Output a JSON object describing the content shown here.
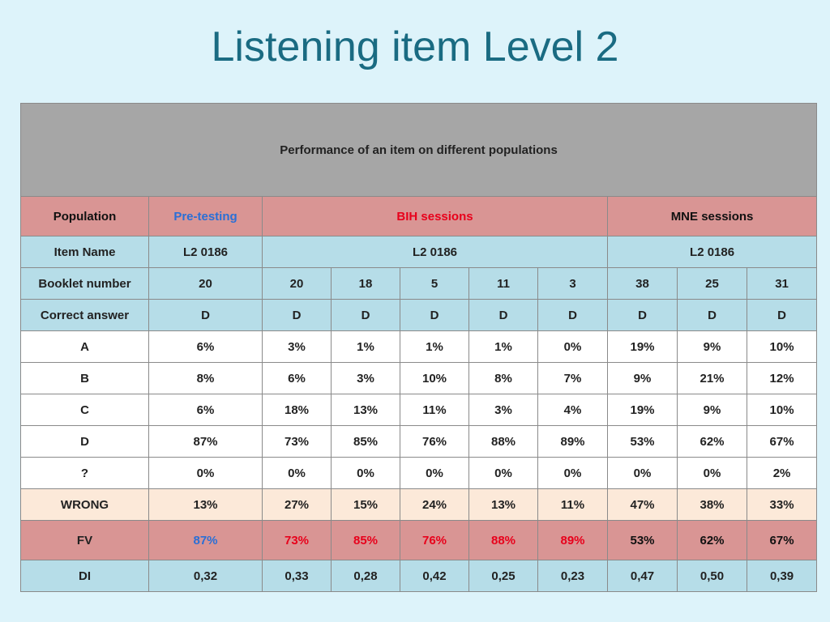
{
  "title": "Listening item Level 2",
  "table": {
    "header": "Performance of an item on different populations",
    "population_row": {
      "label": "Population",
      "pre_testing": "Pre-testing",
      "bih": "BIH sessions",
      "mne": "MNE sessions"
    },
    "item_name_row": {
      "label": "Item Name",
      "pre_testing": "L2 0186",
      "bih": "L2 0186",
      "mne": "L2 0186"
    },
    "rows": [
      {
        "label": "Booklet number",
        "style": "info",
        "values": [
          "20",
          "20",
          "18",
          "5",
          "11",
          "3",
          "38",
          "25",
          "31"
        ]
      },
      {
        "label": "Correct answer",
        "style": "info",
        "values": [
          "D",
          "D",
          "D",
          "D",
          "D",
          "D",
          "D",
          "D",
          "D"
        ]
      },
      {
        "label": "A",
        "style": "white",
        "values": [
          "6%",
          "3%",
          "1%",
          "1%",
          "1%",
          "0%",
          "19%",
          "9%",
          "10%"
        ]
      },
      {
        "label": "B",
        "style": "white",
        "values": [
          "8%",
          "6%",
          "3%",
          "10%",
          "8%",
          "7%",
          "9%",
          "21%",
          "12%"
        ]
      },
      {
        "label": "C",
        "style": "white",
        "values": [
          "6%",
          "18%",
          "13%",
          "11%",
          "3%",
          "4%",
          "19%",
          "9%",
          "10%"
        ]
      },
      {
        "label": "D",
        "style": "white",
        "values": [
          "87%",
          "73%",
          "85%",
          "76%",
          "88%",
          "89%",
          "53%",
          "62%",
          "67%"
        ]
      },
      {
        "label": "?",
        "style": "white",
        "values": [
          "0%",
          "0%",
          "0%",
          "0%",
          "0%",
          "0%",
          "0%",
          "0%",
          "2%"
        ]
      },
      {
        "label": "WRONG",
        "style": "wrong",
        "values": [
          "13%",
          "27%",
          "15%",
          "24%",
          "13%",
          "11%",
          "47%",
          "38%",
          "33%"
        ]
      },
      {
        "label": "FV",
        "style": "fv",
        "values": [
          "87%",
          "73%",
          "85%",
          "76%",
          "88%",
          "89%",
          "53%",
          "62%",
          "67%"
        ]
      },
      {
        "label": "DI",
        "style": "di",
        "values": [
          "0,32",
          "0,33",
          "0,28",
          "0,42",
          "0,25",
          "0,23",
          "0,47",
          "0,50",
          "0,39"
        ]
      }
    ]
  },
  "colors": {
    "background": "#ddf3fa",
    "title": "#1a6b82",
    "header_gray": "#a6a6a6",
    "population_rose": "#d99594",
    "info_blue": "#b6dde8",
    "wrong_peach": "#fce9d9",
    "pre_testing_blue": "#2a6fd6",
    "bih_red": "#e8001b"
  }
}
